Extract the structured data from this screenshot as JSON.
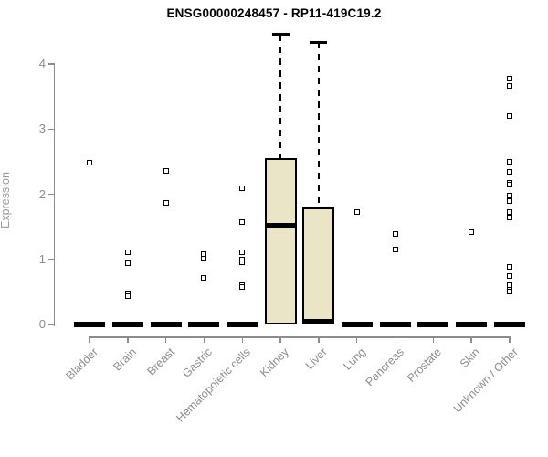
{
  "header": {
    "title": "ENSG00000248457 - RP11-419C19.2"
  },
  "chart_data": {
    "type": "boxplot",
    "title": "ENSG00000248457 - RP11-419C19.2",
    "xlabel": "",
    "ylabel": "Expression",
    "ylim": [
      0,
      4.45
    ],
    "yticks": [
      0,
      1,
      2,
      3,
      4
    ],
    "grid": false,
    "legend": "none",
    "categories": [
      "Bladder",
      "Brain",
      "Breast",
      "Gastric",
      "Hematopoietic cells",
      "Kidney",
      "Liver",
      "Lung",
      "Pancreas",
      "Prostate",
      "Skin",
      "Unknown / Other"
    ],
    "boxes": [
      {
        "category": "Bladder",
        "q1": 0,
        "median": 0,
        "q3": 0,
        "whisker_low": 0,
        "whisker_high": 0,
        "outliers": [
          2.49
        ]
      },
      {
        "category": "Brain",
        "q1": 0,
        "median": 0,
        "q3": 0,
        "whisker_low": 0,
        "whisker_high": 0,
        "outliers": [
          1.11,
          0.94,
          0.48,
          0.43
        ]
      },
      {
        "category": "Breast",
        "q1": 0,
        "median": 0,
        "q3": 0,
        "whisker_low": 0,
        "whisker_high": 0,
        "outliers": [
          2.36,
          1.86
        ]
      },
      {
        "category": "Gastric",
        "q1": 0,
        "median": 0,
        "q3": 0,
        "whisker_low": 0,
        "whisker_high": 0,
        "outliers": [
          1.08,
          1.01,
          0.72
        ]
      },
      {
        "category": "Hematopoietic cells",
        "q1": 0,
        "median": 0,
        "q3": 0,
        "whisker_low": 0,
        "whisker_high": 0,
        "outliers": [
          2.09,
          1.57,
          1.11,
          1.0,
          0.95,
          0.6,
          0.57
        ]
      },
      {
        "category": "Kidney",
        "q1": 0,
        "median": 1.52,
        "q3": 2.55,
        "whisker_low": 0,
        "whisker_high": 4.45,
        "outliers": []
      },
      {
        "category": "Liver",
        "q1": 0,
        "median": 0.02,
        "q3": 1.79,
        "whisker_low": 0,
        "whisker_high": 4.33,
        "outliers": []
      },
      {
        "category": "Lung",
        "q1": 0,
        "median": 0,
        "q3": 0,
        "whisker_low": 0,
        "whisker_high": 0,
        "outliers": [
          1.73
        ]
      },
      {
        "category": "Pancreas",
        "q1": 0,
        "median": 0,
        "q3": 0,
        "whisker_low": 0,
        "whisker_high": 0,
        "outliers": [
          1.39,
          1.15
        ]
      },
      {
        "category": "Prostate",
        "q1": 0,
        "median": 0,
        "q3": 0,
        "whisker_low": 0,
        "whisker_high": 0,
        "outliers": []
      },
      {
        "category": "Skin",
        "q1": 0,
        "median": 0,
        "q3": 0,
        "whisker_low": 0,
        "whisker_high": 0,
        "outliers": [
          1.42
        ]
      },
      {
        "category": "Unknown / Other",
        "q1": 0,
        "median": 0,
        "q3": 0,
        "whisker_low": 0,
        "whisker_high": 0,
        "outliers": [
          3.77,
          3.66,
          3.2,
          2.5,
          2.35,
          2.18,
          2.15,
          1.98,
          1.9,
          1.73,
          1.64,
          0.89,
          0.74,
          0.6,
          0.54,
          0.5
        ]
      }
    ],
    "colors": {
      "box_fill": "#EBE5C7",
      "box_border": "#000000",
      "median": "#000000",
      "axis": "#8C8C8C",
      "tick_label": "#8C8C8C",
      "title": "#000000",
      "background": "#FFFFFF"
    }
  }
}
